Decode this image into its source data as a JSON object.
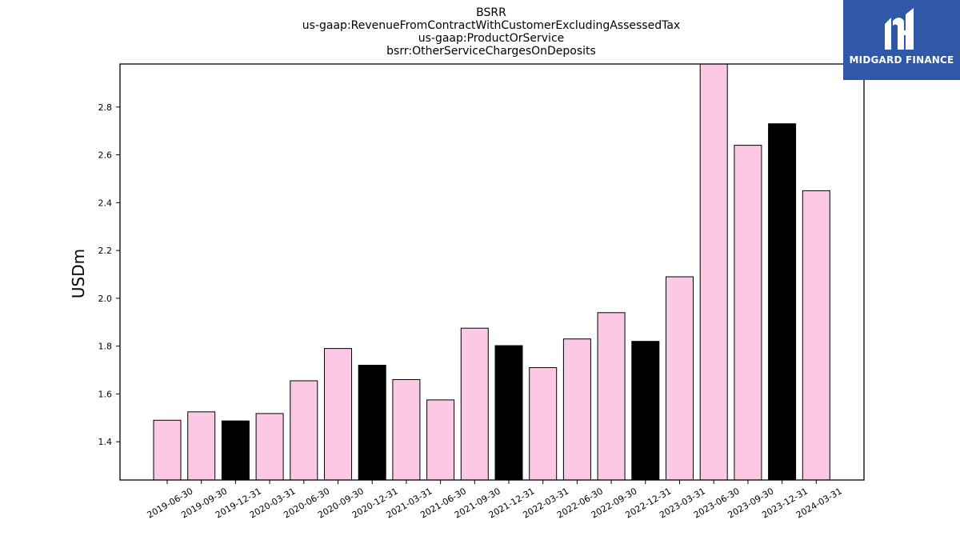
{
  "logo": {
    "text": "MIDGARD FINANCE",
    "icon": "midgard-finance-logo-icon",
    "background": "#2f58a8"
  },
  "colors": {
    "pink": "#fbc9e3",
    "black": "#000000",
    "edge": "#000000"
  },
  "chart_data": {
    "type": "bar",
    "title_lines": [
      "BSRR",
      "us-gaap:RevenueFromContractWithCustomerExcludingAssessedTax",
      "us-gaap:ProductOrService",
      "bsrr:OtherServiceChargesOnDeposits"
    ],
    "xlabel": "",
    "ylabel": "USDm",
    "ylim": [
      1.24,
      2.98
    ],
    "yticks": [
      1.4,
      1.6,
      1.8,
      2.0,
      2.2,
      2.4,
      2.6,
      2.8
    ],
    "ytick_labels": [
      "1.4",
      "1.6",
      "1.8",
      "2.0",
      "2.2",
      "2.4",
      "2.6",
      "2.8"
    ],
    "grid": false,
    "categories": [
      "2019-06-30",
      "2019-09-30",
      "2019-12-31",
      "2020-03-31",
      "2020-06-30",
      "2020-09-30",
      "2020-12-31",
      "2021-03-31",
      "2021-06-30",
      "2021-09-30",
      "2021-12-31",
      "2022-03-31",
      "2022-06-30",
      "2022-09-30",
      "2022-12-31",
      "2023-03-31",
      "2023-06-30",
      "2023-09-30",
      "2023-12-31",
      "2024-03-31"
    ],
    "values": [
      1.49,
      1.525,
      1.487,
      1.518,
      1.655,
      1.79,
      1.72,
      1.66,
      1.575,
      1.875,
      1.802,
      1.71,
      1.83,
      1.94,
      1.82,
      2.09,
      2.98,
      2.64,
      2.73,
      2.45
    ],
    "bar_colors": [
      "pink",
      "pink",
      "black",
      "pink",
      "pink",
      "pink",
      "black",
      "pink",
      "pink",
      "pink",
      "black",
      "pink",
      "pink",
      "pink",
      "black",
      "pink",
      "pink",
      "pink",
      "black",
      "pink"
    ]
  }
}
